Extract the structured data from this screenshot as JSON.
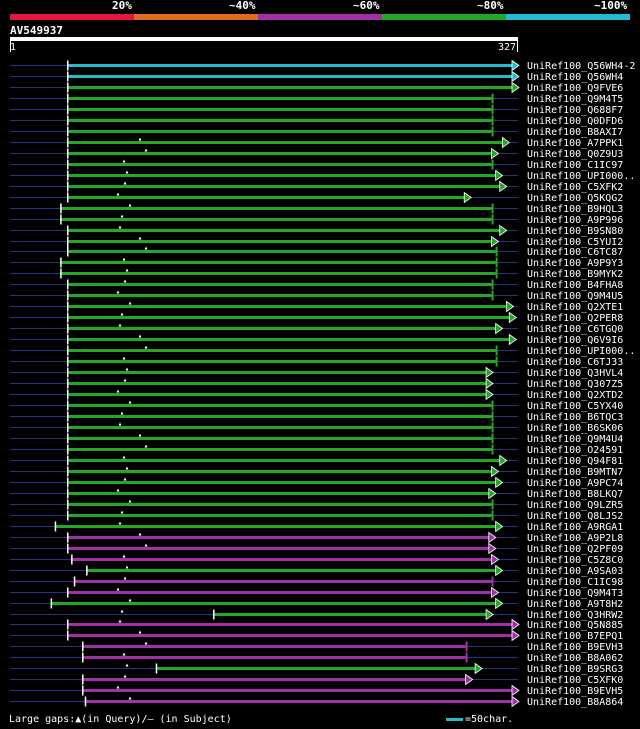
{
  "legend": {
    "items": [
      {
        "label": "20%",
        "color": "#e6193c"
      },
      {
        "label": "~40%",
        "color": "#e06c1c"
      },
      {
        "label": "~60%",
        "color": "#a030a8"
      },
      {
        "label": "~80%",
        "color": "#22a822"
      },
      {
        "label": "~100%",
        "color": "#22bbcc"
      }
    ]
  },
  "query": {
    "name": "AV549937",
    "start": "1",
    "end": "327"
  },
  "colors": {
    "green": "#22a822",
    "magenta": "#a030a8",
    "cyan": "#22bbcc",
    "backbone": "#223388",
    "gap": "#ffffff"
  },
  "hits": [
    {
      "name": "UniRef100_Q56WH4-2",
      "color": "cyan",
      "start": 1,
      "end": 327,
      "arrow": "right"
    },
    {
      "name": "UniRef100_Q56WH4",
      "color": "cyan",
      "start": 1,
      "end": 327,
      "arrow": "right"
    },
    {
      "name": "UniRef100_Q9FVE6",
      "color": "green",
      "start": 1,
      "end": 327,
      "arrow": "right"
    },
    {
      "name": "UniRef100_Q9M4T5",
      "color": "green",
      "start": 1,
      "end": 312,
      "arrow": "bar"
    },
    {
      "name": "UniRef100_Q688F7",
      "color": "green",
      "start": 1,
      "end": 312,
      "arrow": "bar"
    },
    {
      "name": "UniRef100_Q0DFD6",
      "color": "green",
      "start": 1,
      "end": 312,
      "arrow": "bar"
    },
    {
      "name": "UniRef100_B8AXI7",
      "color": "green",
      "start": 1,
      "end": 312,
      "arrow": "bar"
    },
    {
      "name": "UniRef100_A7PPK1",
      "color": "green",
      "start": 1,
      "end": 320,
      "arrow": "right"
    },
    {
      "name": "UniRef100_Q0Z9U3",
      "color": "green",
      "start": 1,
      "end": 312,
      "arrow": "right"
    },
    {
      "name": "UniRef100_C1IC97",
      "color": "green",
      "start": 1,
      "end": 312,
      "arrow": "bar"
    },
    {
      "name": "UniRef100_UPI000..",
      "color": "green",
      "start": 1,
      "end": 315,
      "arrow": "right"
    },
    {
      "name": "UniRef100_C5XFK2",
      "color": "green",
      "start": 1,
      "end": 318,
      "arrow": "right"
    },
    {
      "name": "UniRef100_Q5KQG2",
      "color": "green",
      "start": 1,
      "end": 292,
      "arrow": "right"
    },
    {
      "name": "UniRef100_B9HQL3",
      "color": "green",
      "start": -4,
      "end": 312,
      "arrow": "bar"
    },
    {
      "name": "UniRef100_A9P996",
      "color": "green",
      "start": -4,
      "end": 312,
      "arrow": "bar"
    },
    {
      "name": "UniRef100_B9SN80",
      "color": "green",
      "start": 1,
      "end": 318,
      "arrow": "right"
    },
    {
      "name": "UniRef100_C5YUI2",
      "color": "green",
      "start": 1,
      "end": 312,
      "arrow": "right"
    },
    {
      "name": "UniRef100_C6TC87",
      "color": "green",
      "start": 1,
      "end": 315,
      "arrow": "bar"
    },
    {
      "name": "UniRef100_A9P9Y3",
      "color": "green",
      "start": -4,
      "end": 315,
      "arrow": "bar"
    },
    {
      "name": "UniRef100_B9MYK2",
      "color": "green",
      "start": -4,
      "end": 315,
      "arrow": "bar"
    },
    {
      "name": "UniRef100_B4FHA8",
      "color": "green",
      "start": 1,
      "end": 312,
      "arrow": "bar"
    },
    {
      "name": "UniRef100_Q9M4U5",
      "color": "green",
      "start": 1,
      "end": 312,
      "arrow": "bar"
    },
    {
      "name": "UniRef100_Q2XTE1",
      "color": "green",
      "start": 1,
      "end": 323,
      "arrow": "right"
    },
    {
      "name": "UniRef100_Q2PER8",
      "color": "green",
      "start": 1,
      "end": 325,
      "arrow": "right"
    },
    {
      "name": "UniRef100_C6TGQ0",
      "color": "green",
      "start": 1,
      "end": 315,
      "arrow": "right"
    },
    {
      "name": "UniRef100_Q6V9I6",
      "color": "green",
      "start": 1,
      "end": 325,
      "arrow": "right"
    },
    {
      "name": "UniRef100_UPI000..",
      "color": "green",
      "start": 1,
      "end": 315,
      "arrow": "bar"
    },
    {
      "name": "UniRef100_C6TJ33",
      "color": "green",
      "start": 1,
      "end": 315,
      "arrow": "bar"
    },
    {
      "name": "UniRef100_Q3HVL4",
      "color": "green",
      "start": 1,
      "end": 308,
      "arrow": "right"
    },
    {
      "name": "UniRef100_Q307Z5",
      "color": "green",
      "start": 1,
      "end": 308,
      "arrow": "right"
    },
    {
      "name": "UniRef100_Q2XTD2",
      "color": "green",
      "start": 1,
      "end": 308,
      "arrow": "right"
    },
    {
      "name": "UniRef100_C5YX40",
      "color": "green",
      "start": 1,
      "end": 312,
      "arrow": "bar"
    },
    {
      "name": "UniRef100_B6TQC3",
      "color": "green",
      "start": 1,
      "end": 312,
      "arrow": "bar"
    },
    {
      "name": "UniRef100_B6SK06",
      "color": "green",
      "start": 1,
      "end": 312,
      "arrow": "bar"
    },
    {
      "name": "UniRef100_Q9M4U4",
      "color": "green",
      "start": 1,
      "end": 312,
      "arrow": "bar"
    },
    {
      "name": "UniRef100_O24591",
      "color": "green",
      "start": 1,
      "end": 312,
      "arrow": "bar"
    },
    {
      "name": "UniRef100_Q94F81",
      "color": "green",
      "start": 1,
      "end": 318,
      "arrow": "right"
    },
    {
      "name": "UniRef100_B9MTN7",
      "color": "green",
      "start": 1,
      "end": 312,
      "arrow": "right"
    },
    {
      "name": "UniRef100_A9PC74",
      "color": "green",
      "start": 1,
      "end": 315,
      "arrow": "right"
    },
    {
      "name": "UniRef100_B8LKQ7",
      "color": "green",
      "start": 1,
      "end": 310,
      "arrow": "right"
    },
    {
      "name": "UniRef100_Q9LZR5",
      "color": "green",
      "start": 1,
      "end": 312,
      "arrow": "bar"
    },
    {
      "name": "UniRef100_Q8LJS2",
      "color": "green",
      "start": 1,
      "end": 312,
      "arrow": "bar"
    },
    {
      "name": "UniRef100_A9RGA1",
      "color": "green",
      "start": -8,
      "end": 315,
      "arrow": "right"
    },
    {
      "name": "UniRef100_A9P2L8",
      "color": "magenta",
      "start": 1,
      "end": 310,
      "arrow": "right"
    },
    {
      "name": "UniRef100_Q2PF09",
      "color": "magenta",
      "start": 1,
      "end": 310,
      "arrow": "right"
    },
    {
      "name": "UniRef100_C5Z8C0",
      "color": "magenta",
      "start": 4,
      "end": 312,
      "arrow": "right"
    },
    {
      "name": "UniRef100_A9SA03",
      "color": "green",
      "start": 15,
      "end": 315,
      "arrow": "right"
    },
    {
      "name": "UniRef100_C1IC98",
      "color": "magenta",
      "start": 6,
      "end": 312,
      "arrow": "bar"
    },
    {
      "name": "UniRef100_Q9M4T3",
      "color": "magenta",
      "start": 1,
      "end": 312,
      "arrow": "right"
    },
    {
      "name": "UniRef100_A9T8H2",
      "color": "green",
      "start": -11,
      "end": 315,
      "arrow": "right"
    },
    {
      "name": "UniRef100_Q3HRW2",
      "color": "green",
      "start": 108,
      "end": 308,
      "arrow": "right"
    },
    {
      "name": "UniRef100_Q5N885",
      "color": "magenta",
      "start": 1,
      "end": 327,
      "arrow": "right"
    },
    {
      "name": "UniRef100_B7EPQ1",
      "color": "magenta",
      "start": 1,
      "end": 327,
      "arrow": "right"
    },
    {
      "name": "UniRef100_B9EVH3",
      "color": "magenta",
      "start": 12,
      "end": 293,
      "arrow": "bar"
    },
    {
      "name": "UniRef100_B8A062",
      "color": "magenta",
      "start": 12,
      "end": 293,
      "arrow": "bar"
    },
    {
      "name": "UniRef100_B9SRG3",
      "color": "green",
      "start": 66,
      "end": 300,
      "arrow": "right"
    },
    {
      "name": "UniRef100_C5XFK0",
      "color": "magenta",
      "start": 12,
      "end": 293,
      "arrow": "right"
    },
    {
      "name": "UniRef100_B9EVH5",
      "color": "magenta",
      "start": 12,
      "end": 327,
      "arrow": "right"
    },
    {
      "name": "UniRef100_B8A864",
      "color": "magenta",
      "start": 14,
      "end": 327,
      "arrow": "right"
    }
  ],
  "footer": {
    "text": "Large gaps:▲(in Query)/– (in Subject)",
    "scale": "=50char."
  }
}
